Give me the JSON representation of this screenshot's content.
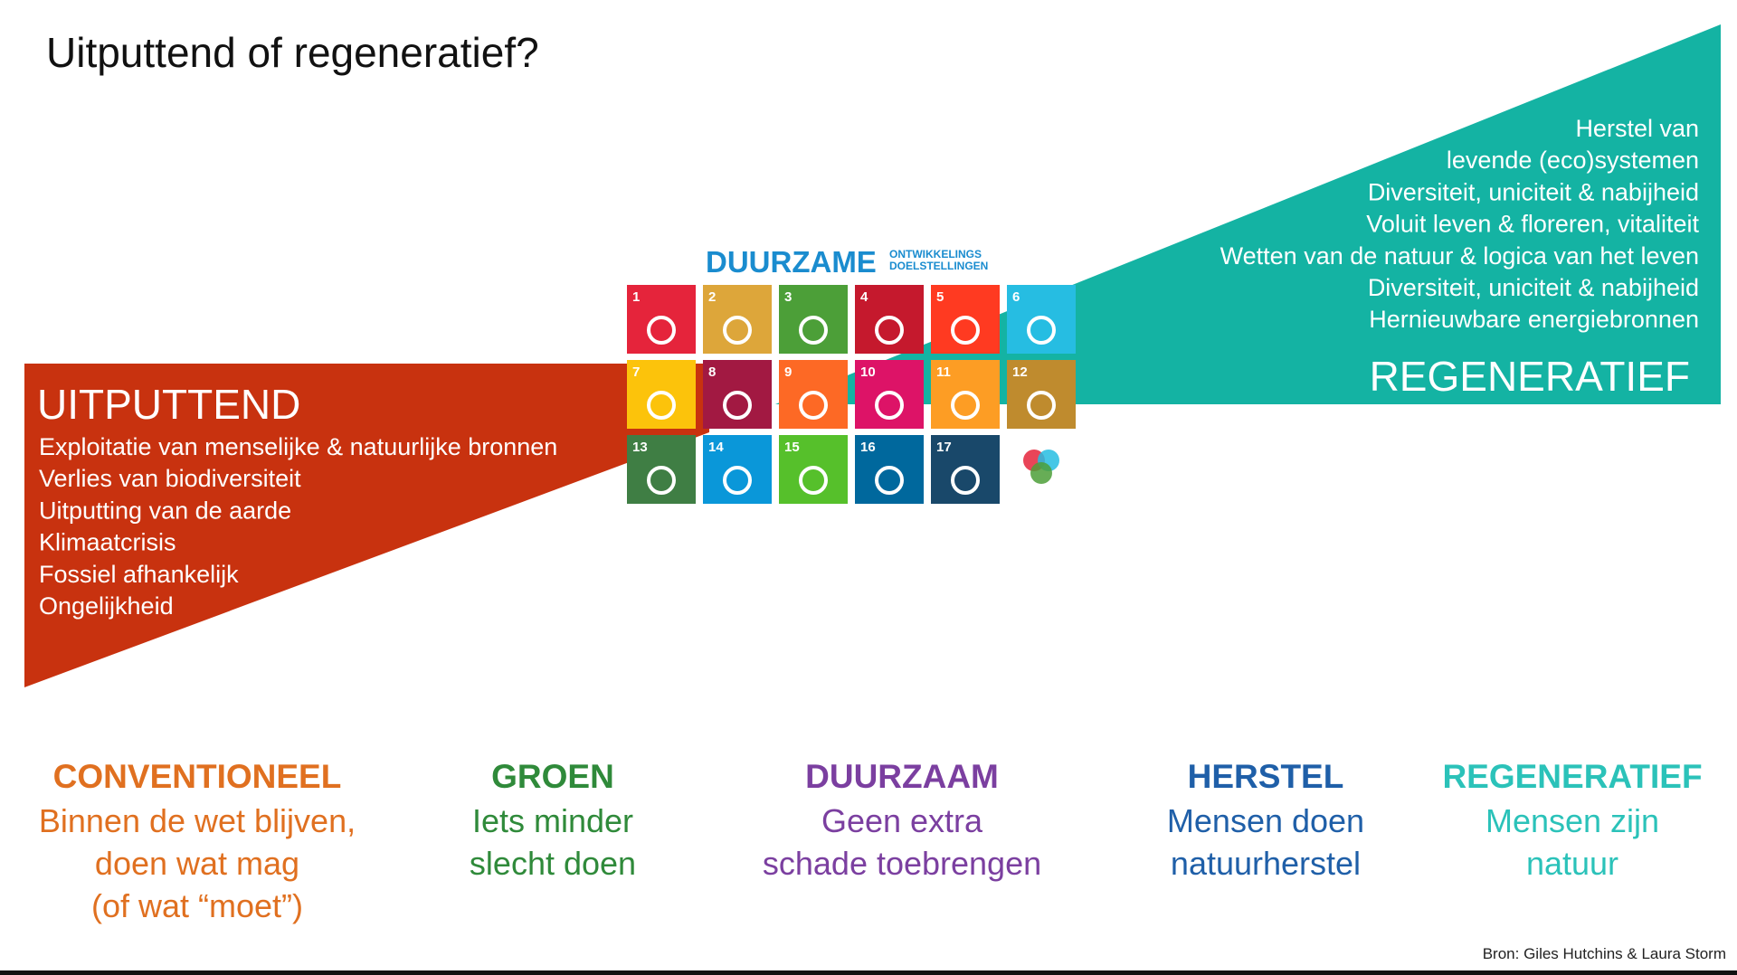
{
  "title": "Uitputtend of regeneratief?",
  "left": {
    "heading": "UITPUTTEND",
    "items": [
      "Exploitatie van menselijke & natuurlijke bronnen",
      "Verlies van biodiversiteit",
      "Uitputting van de aarde",
      "Klimaatcrisis",
      "Fossiel afhankelijk",
      "Ongelijkheid"
    ]
  },
  "right": {
    "heading": "REGENERATIEF",
    "items": [
      "Herstel van",
      "levende (eco)systemen",
      "Diversiteit, uniciteit & nabijheid",
      "Voluit leven & floreren, vitaliteit",
      "Wetten van de natuur & logica van het leven",
      "Diversiteit, uniciteit & nabijheid",
      "Hernieuwbare energiebronnen"
    ]
  },
  "sdg": {
    "title": "DUURZAME",
    "subtitle": [
      "ONTWIKKELINGS",
      "DOELSTELLINGEN"
    ],
    "tiles": [
      "1",
      "2",
      "3",
      "4",
      "5",
      "6",
      "7",
      "8",
      "9",
      "10",
      "11",
      "12",
      "13",
      "14",
      "15",
      "16",
      "17"
    ]
  },
  "stages": [
    {
      "heading": "CONVENTIONEEL",
      "lines": [
        "Binnen de wet blijven,",
        "doen wat mag",
        "(of wat “moet”)"
      ]
    },
    {
      "heading": "GROEN",
      "lines": [
        "Iets minder",
        "slecht doen"
      ]
    },
    {
      "heading": "DUURZAAM",
      "lines": [
        "Geen extra",
        "schade toebrengen"
      ]
    },
    {
      "heading": "HERSTEL",
      "lines": [
        "Mensen doen",
        "natuurherstel"
      ]
    },
    {
      "heading": "REGENERATIEF",
      "lines": [
        "Mensen zijn",
        "natuur"
      ]
    }
  ],
  "source": "Bron: Giles Hutchins & Laura Storm"
}
